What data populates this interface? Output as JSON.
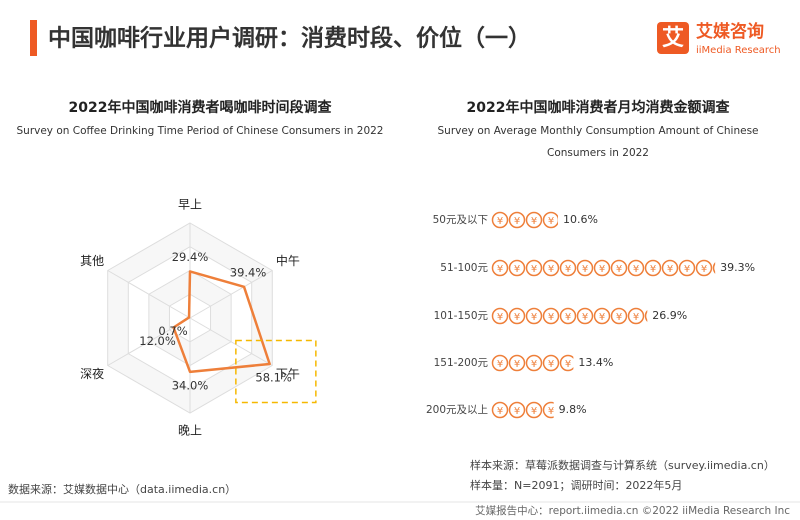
{
  "header": {
    "title": "中国咖啡行业用户调研：消费时段、价位（一）",
    "logo_icon": "艾",
    "logo_cn": "艾媒咨询",
    "logo_en": "iiMedia Research"
  },
  "chart_data": [
    {
      "type": "radar",
      "title": "2022年中国咖啡消费者喝咖啡时间段调查",
      "subtitle": "Survey on Coffee Drinking Time Period of Chinese Consumers in 2022",
      "categories": [
        "早上",
        "中午",
        "下午",
        "晚上",
        "深夜",
        "其他"
      ],
      "values": [
        29.4,
        39.4,
        58.1,
        34.0,
        12.0,
        0.7
      ],
      "value_labels": [
        "29.4%",
        "39.4%",
        "58.1%",
        "34.0%",
        "12.0%",
        "0.7%"
      ],
      "color": "#ee7f3a",
      "rlim": [
        0,
        60
      ],
      "rticks": [
        15,
        30,
        45,
        60
      ],
      "grid": true
    },
    {
      "type": "pictorial-bar",
      "title": "2022年中国咖啡消费者月均消费金额调查",
      "subtitle": [
        "Survey on Average Monthly Consumption Amount of Chinese",
        "Consumers in 2022"
      ],
      "categories": [
        "50元及以下",
        "51-100元",
        "101-150元",
        "151-200元",
        "200元及以上"
      ],
      "values": [
        10.6,
        39.3,
        26.9,
        13.4,
        9.8
      ],
      "value_labels": [
        "10.6%",
        "39.3%",
        "26.9%",
        "13.4%",
        "9.8%"
      ],
      "icon": "¥",
      "color": "#ee7f3a",
      "xlim": [
        0,
        40
      ]
    }
  ],
  "footer": {
    "source": "数据来源：艾媒数据中心（data.iimedia.cn）",
    "sample_source": "样本来源：草莓派数据调查与计算系统（survey.iimedia.cn）",
    "sample_size": "样本量：N=2091；调研时间：2022年5月",
    "report": "艾媒报告中心：report.iimedia.cn  ©2022  iiMedia Research  Inc"
  }
}
